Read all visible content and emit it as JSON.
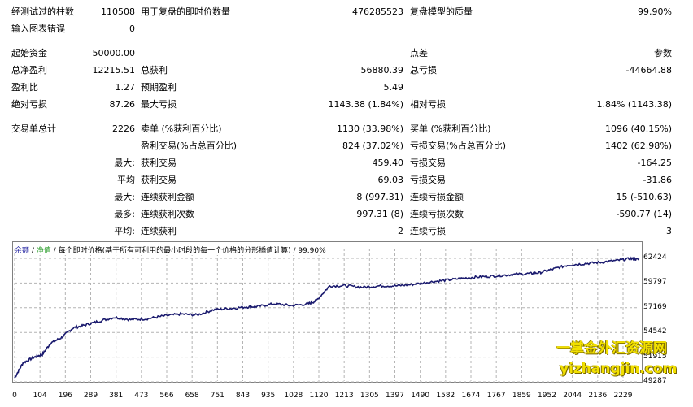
{
  "report": {
    "row1": {
      "l1": "经测试过的柱数",
      "v1": "110508",
      "l2": "用于复盘的即时价数量",
      "v2": "476285523",
      "l3": "复盘模型的质量",
      "v3": "99.90%"
    },
    "row2": {
      "l1": "输入图表错误",
      "v1": "0"
    },
    "row3": {
      "l1": "起始资金",
      "v1": "50000.00",
      "l3": "点差",
      "v3": "参数"
    },
    "row4": {
      "l1": "总净盈利",
      "v1": "12215.51",
      "l2": "总获利",
      "v2": "56880.39",
      "l3": "总亏损",
      "v3": "-44664.88"
    },
    "row5": {
      "l1": "盈利比",
      "v1": "1.27",
      "l2": "预期盈利",
      "v2": "5.49"
    },
    "row6": {
      "l1": "绝对亏损",
      "v1": "87.26",
      "l2": "最大亏损",
      "v2": "1143.38 (1.84%)",
      "l3": "相对亏损",
      "v3": "1.84% (1143.38)"
    },
    "row7": {
      "l1": "交易单总计",
      "v1": "2226",
      "l2": "卖单 (%获利百分比)",
      "v2": "1130 (33.98%)",
      "l3": "买单 (%获利百分比)",
      "v3": "1096 (40.15%)"
    },
    "row8": {
      "l2": "盈利交易(%占总百分比)",
      "v2": "824 (37.02%)",
      "l3": "亏损交易(%占总百分比)",
      "v3": "1402 (62.98%)"
    },
    "row9": {
      "p": "最大:",
      "l2": "获利交易",
      "v2": "459.40",
      "l3": "亏损交易",
      "v3": "-164.25"
    },
    "row10": {
      "p": "平均",
      "l2": "获利交易",
      "v2": "69.03",
      "l3": "亏损交易",
      "v3": "-31.86"
    },
    "row11": {
      "p": "最大:",
      "l2": "连续获利金额",
      "v2": "8 (997.31)",
      "l3": "连续亏损金额",
      "v3": "15 (-510.63)"
    },
    "row12": {
      "p": "最多:",
      "l2": "连续获利次数",
      "v2": "997.31 (8)",
      "l3": "连续亏损次数",
      "v3": "-590.77 (14)"
    },
    "row13": {
      "p": "平均:",
      "l2": "连续获利",
      "v2": "2",
      "l3": "连续亏损",
      "v3": "3"
    }
  },
  "chart_header": {
    "balance": "余额",
    "sep1": " / ",
    "equity": "净值",
    "sep2": " / ",
    "text": "每个即时价格(基于所有可利用的最小时段的每一个价格的分形插值计算)",
    "sep3": " / ",
    "quality": "99.90%"
  },
  "watermark": {
    "line1": "一掌金外汇资源网",
    "line2": "yizhangjin.com"
  },
  "colors": {
    "balance_line": "#1a1a6e",
    "grid": "#b4b4b4"
  },
  "chart_data": {
    "type": "line",
    "x_ticks": [
      "0",
      "104",
      "196",
      "289",
      "381",
      "473",
      "566",
      "658",
      "751",
      "843",
      "935",
      "1028",
      "1120",
      "1213",
      "1305",
      "1397",
      "1490",
      "1582",
      "1674",
      "1767",
      "1859",
      "1952",
      "2044",
      "2136",
      "2229"
    ],
    "y_ticks": [
      "62424",
      "59797",
      "57169",
      "54542",
      "51915",
      "49287"
    ],
    "ylim": [
      49287,
      62424
    ],
    "xlim": [
      0,
      2260
    ],
    "series": [
      {
        "points": [
          [
            0,
            49700
          ],
          [
            30,
            51300
          ],
          [
            70,
            51900
          ],
          [
            100,
            52200
          ],
          [
            130,
            53400
          ],
          [
            170,
            54000
          ],
          [
            210,
            55000
          ],
          [
            250,
            55300
          ],
          [
            300,
            55700
          ],
          [
            360,
            56150
          ],
          [
            420,
            55900
          ],
          [
            480,
            56000
          ],
          [
            540,
            56300
          ],
          [
            600,
            56500
          ],
          [
            660,
            56400
          ],
          [
            720,
            56950
          ],
          [
            780,
            57100
          ],
          [
            840,
            57250
          ],
          [
            880,
            57300
          ],
          [
            940,
            57600
          ],
          [
            1000,
            57400
          ],
          [
            1060,
            57550
          ],
          [
            1090,
            57900
          ],
          [
            1140,
            59500
          ],
          [
            1200,
            59500
          ],
          [
            1260,
            59350
          ],
          [
            1320,
            59500
          ],
          [
            1380,
            59500
          ],
          [
            1440,
            59650
          ],
          [
            1500,
            59900
          ],
          [
            1560,
            60100
          ],
          [
            1620,
            60300
          ],
          [
            1680,
            60450
          ],
          [
            1740,
            60550
          ],
          [
            1800,
            60700
          ],
          [
            1860,
            60800
          ],
          [
            1900,
            60900
          ],
          [
            1950,
            61300
          ],
          [
            2000,
            61700
          ],
          [
            2060,
            61850
          ],
          [
            2120,
            62000
          ],
          [
            2180,
            62200
          ],
          [
            2230,
            62400
          ],
          [
            2260,
            62300
          ]
        ]
      }
    ]
  }
}
